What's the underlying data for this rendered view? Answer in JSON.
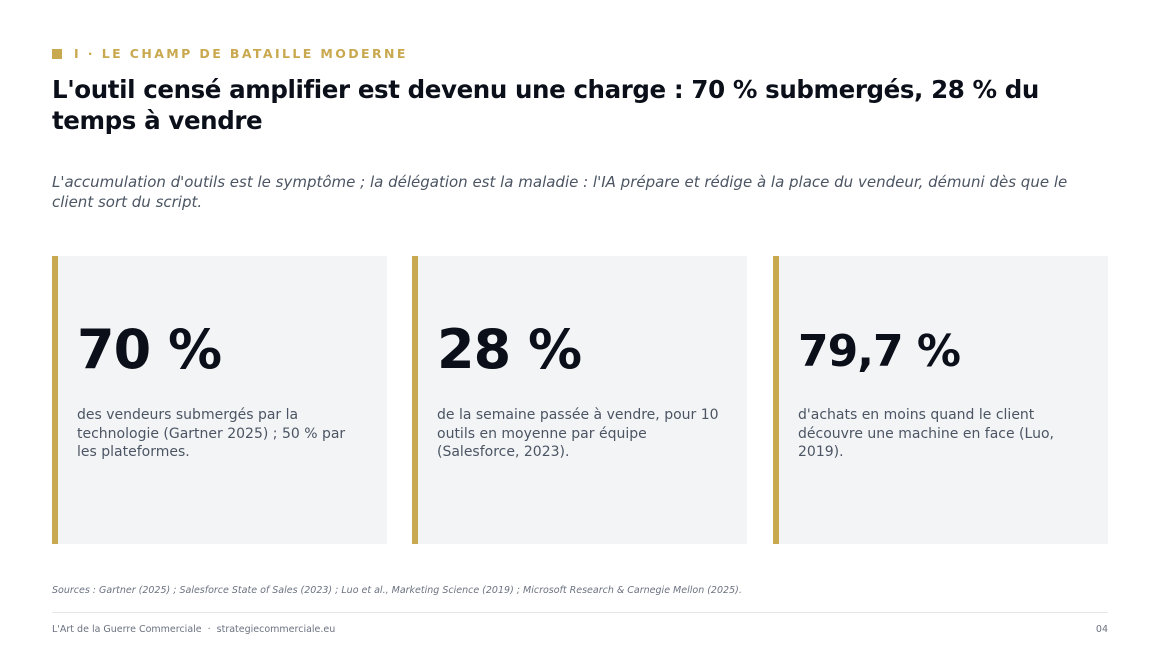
{
  "header": {
    "section_tag": "I · LE CHAMP DE BATAILLE MODERNE",
    "title": "L'outil censé amplifier est devenu une charge : 70 % submergés, 28 % du temps à vendre",
    "subtitle": "L'accumulation d'outils est le symptôme ; la délégation est la maladie : l'IA prépare et rédige à la place du vendeur, démuni dès que le client sort du script."
  },
  "stats": [
    {
      "value": "70 %",
      "description": "des vendeurs submergés par la technologie (Gartner 2025) ; 50 % par les plateformes."
    },
    {
      "value": "28 %",
      "description": "de la semaine passée à vendre, pour 10 outils en moyenne par équipe (Salesforce, 2023)."
    },
    {
      "value": "79,7 %",
      "description": "d'achats en moins quand le client découvre une machine en face (Luo, 2019)."
    }
  ],
  "sources": "Sources : Gartner (2025) ; Salesforce State of Sales (2023) ; Luo et al., Marketing Science (2019) ; Microsoft Research & Carnegie Mellon (2025).",
  "footer": {
    "brand": "L'Art de la Guerre Commerciale",
    "separator": "·",
    "website": "strategiecommerciale.eu",
    "page_number": "04"
  },
  "colors": {
    "accent": "#c9a94f",
    "card_background": "#f3f4f6",
    "heading": "#0b0f19",
    "body_text": "#4b5563"
  }
}
